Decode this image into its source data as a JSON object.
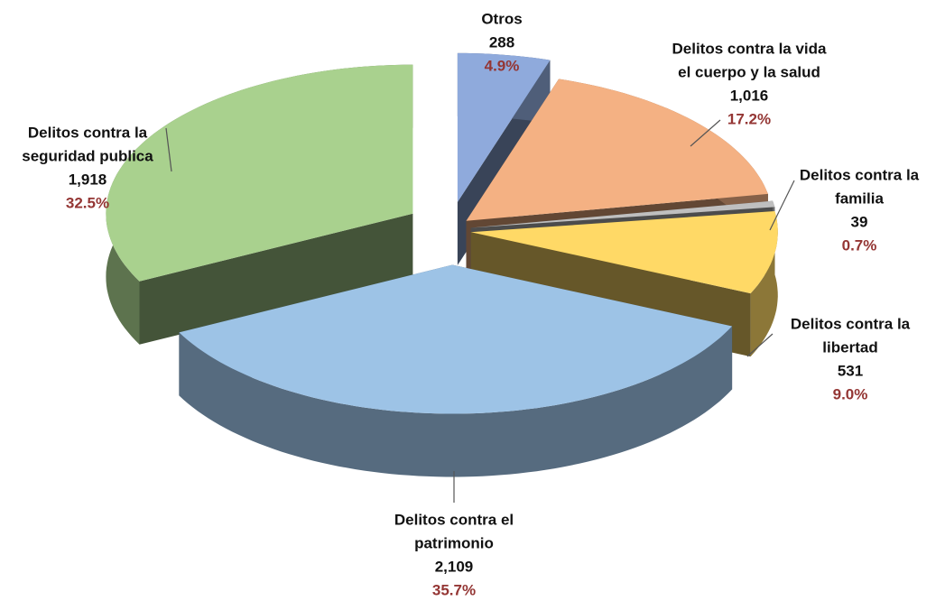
{
  "chart_data": {
    "type": "pie",
    "categories": [
      [
        "Otros"
      ],
      [
        "Delitos contra la vida",
        "el cuerpo y la salud"
      ],
      [
        "Delitos contra la",
        "familia"
      ],
      [
        "Delitos contra la",
        "libertad"
      ],
      [
        "Delitos contra el",
        "patrimonio"
      ],
      [
        "Delitos contra la",
        "seguridad publica"
      ]
    ],
    "values": [
      288,
      1016,
      39,
      531,
      2109,
      1918
    ],
    "value_labels": [
      "288",
      "1,016",
      "39",
      "531",
      "2,109",
      "1,918"
    ],
    "percents": [
      4.9,
      17.2,
      0.7,
      9.0,
      35.7,
      32.5
    ],
    "percent_labels": [
      "4.9%",
      "17.2%",
      "0.7%",
      "9.0%",
      "35.7%",
      "32.5%"
    ],
    "colors": [
      "#8faadc",
      "#f4b183",
      "#bfbfbf",
      "#ffd966",
      "#9dc3e6",
      "#a9d18e"
    ]
  }
}
